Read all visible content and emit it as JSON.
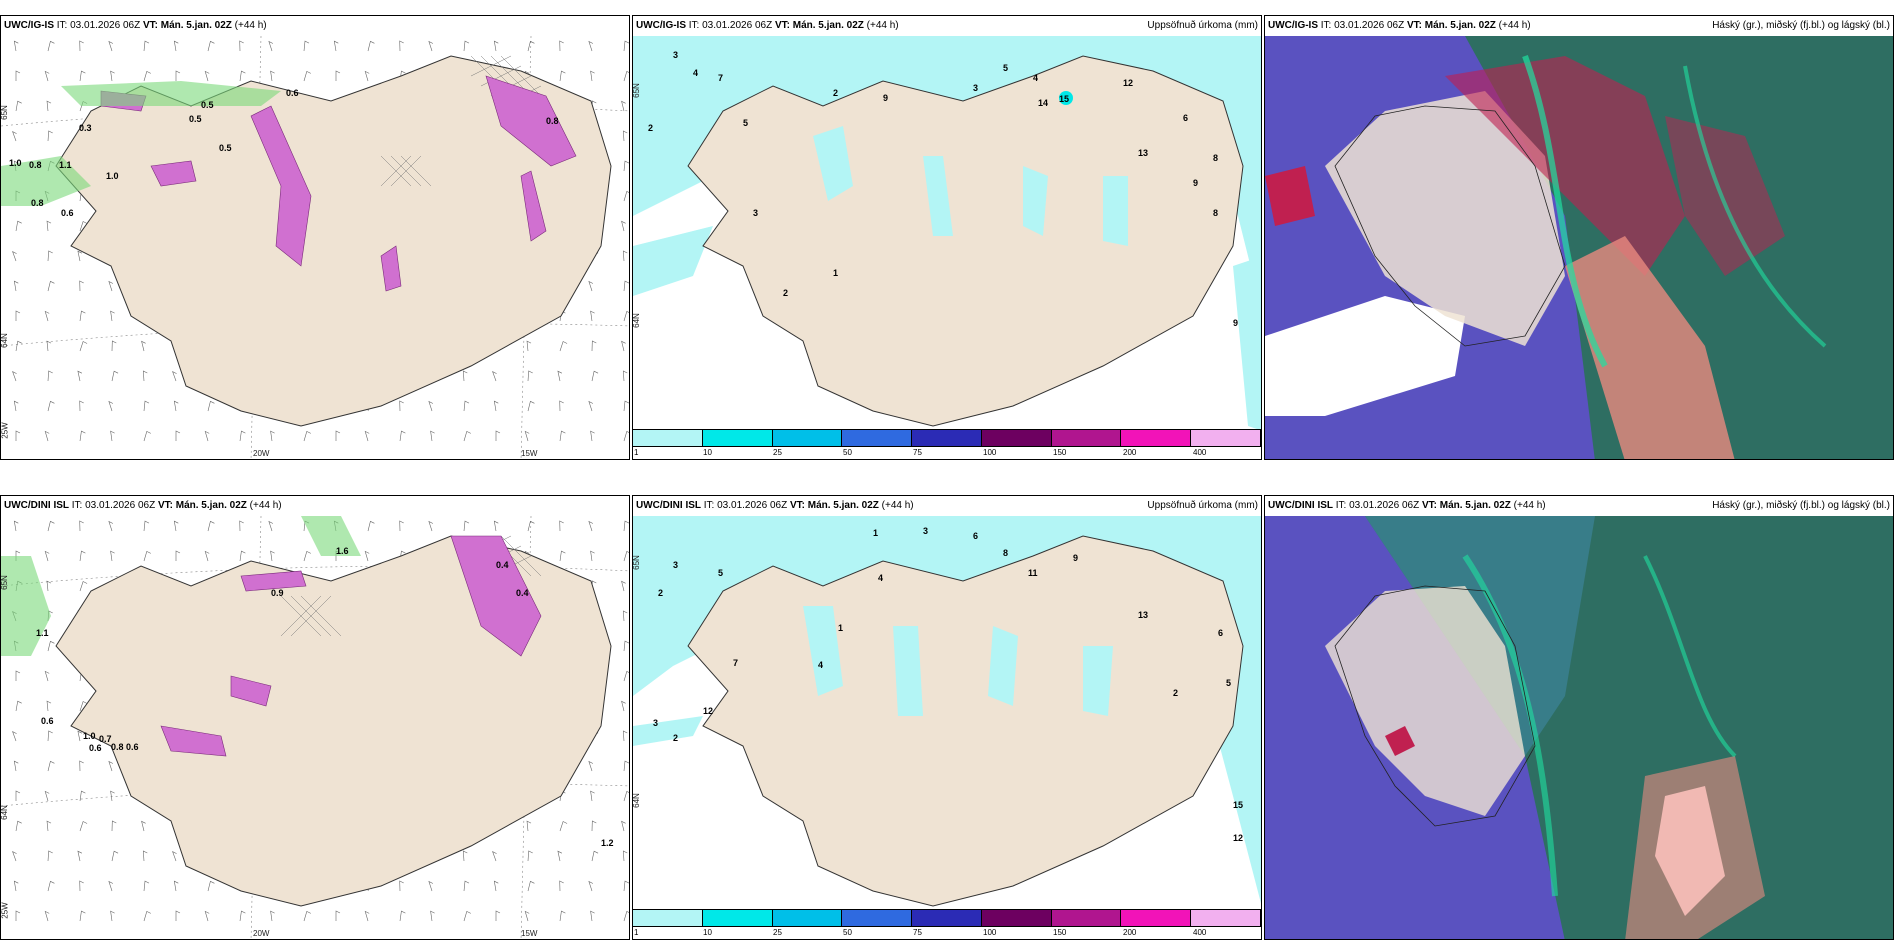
{
  "panels_top": {
    "wind": {
      "model": "UWC/IG-IS",
      "it": "IT: 03.01.2026 06Z",
      "vt": "VT: Mán. 5.jan. 02Z",
      "lead": "(+44 h)",
      "lon_labels": [
        "20W",
        "15W"
      ],
      "lat_labels": [
        "65N",
        "64N",
        "25W"
      ],
      "values": [
        "1.0",
        "0.8",
        "0.8",
        "0.6",
        "1.0",
        "1.1",
        "0.5",
        "0.5",
        "0.5",
        "0.3",
        "0.6",
        "0.8"
      ]
    },
    "precip": {
      "model": "UWC/IG-IS",
      "it": "IT: 03.01.2026 06Z",
      "vt": "VT: Mán. 5.jan. 02Z",
      "lead": "(+44 h)",
      "right_title": "Uppsöfnuð úrkoma (mm)",
      "lat_labels": [
        "65N",
        "64N"
      ],
      "values": [
        "3",
        "4",
        "2",
        "7",
        "5",
        "2",
        "9",
        "3",
        "5",
        "4",
        "15",
        "14",
        "12",
        "6",
        "8",
        "13",
        "9",
        "2",
        "1",
        "3",
        "8",
        "9"
      ]
    },
    "cloud": {
      "model": "UWC/IG-IS",
      "it": "IT: 03.01.2026 06Z",
      "vt": "VT: Mán. 5.jan. 02Z",
      "lead": "(+44 h)",
      "right_title": "Háský (gr.), miðský (fj.bl.) og lágský (bl.)"
    }
  },
  "panels_bottom": {
    "wind": {
      "model": "UWC/DINI ISL",
      "it": "IT: 03.01.2026 06Z",
      "vt": "VT: Mán. 5.jan. 02Z",
      "lead": "(+44 h)",
      "lon_labels": [
        "20W",
        "15W"
      ],
      "lat_labels": [
        "65N",
        "64N",
        "25W"
      ],
      "values": [
        "1.1",
        "0.6",
        "1.0",
        "0.7",
        "0.6",
        "0.8",
        "0.6",
        "0.4",
        "1.2",
        "1.6",
        "0.4",
        "0.9"
      ]
    },
    "precip": {
      "model": "UWC/DINI ISL",
      "it": "IT: 03.01.2026 06Z",
      "vt": "VT: Mán. 5.jan. 02Z",
      "lead": "(+44 h)",
      "right_title": "Uppsöfnuð úrkoma (mm)",
      "lat_labels": [
        "65N",
        "64N"
      ],
      "values": [
        "3",
        "2",
        "5",
        "1",
        "4",
        "3",
        "6",
        "8",
        "11",
        "9",
        "13",
        "15",
        "12",
        "5",
        "3",
        "2",
        "12",
        "4",
        "7",
        "1",
        "6",
        "2"
      ]
    },
    "cloud": {
      "model": "UWC/DINI ISL",
      "it": "IT: 03.01.2026 06Z",
      "vt": "VT: Mán. 5.jan. 02Z",
      "lead": "(+44 h)",
      "right_title": "Háský (gr.), miðský (fj.bl.) og lágský (bl.)"
    }
  },
  "colorbar": {
    "colors": [
      "#b3f5f5",
      "#00e8e8",
      "#00bfe8",
      "#2f6ae0",
      "#2b2bb5",
      "#6d0060",
      "#b0158f",
      "#f213b8",
      "#f2b0ef"
    ],
    "ticks": [
      "1",
      "10",
      "25",
      "50",
      "75",
      "100",
      "150",
      "200",
      "400"
    ]
  },
  "colors": {
    "land": "#efe3d3",
    "sea": "#ffffff",
    "precip_light": "#b3f5f5",
    "low_cloud": "#5a52c0",
    "mid_cloud": "#2f7a6a",
    "high_cloud": "#c02050",
    "snow_band": "#d070d0"
  }
}
